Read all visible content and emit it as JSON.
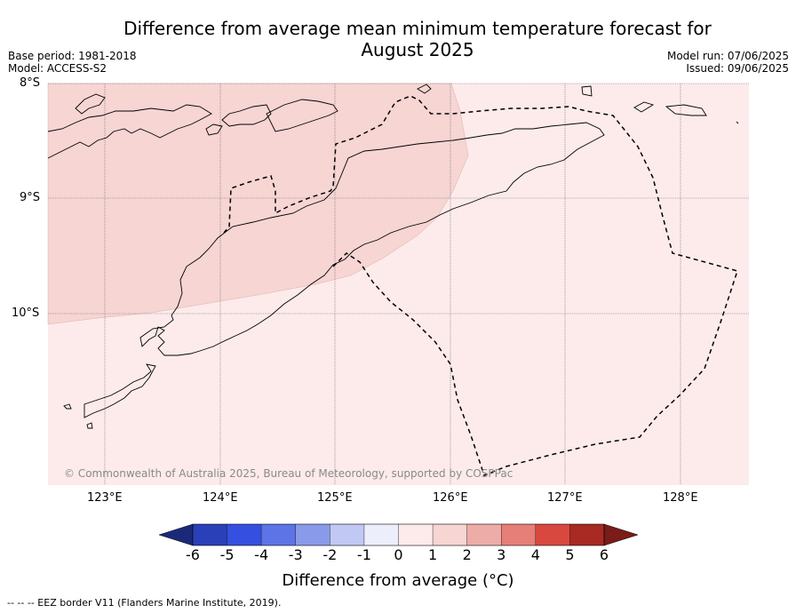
{
  "title_line1": "Difference from average mean minimum temperature forecast for",
  "title_line2": "August 2025",
  "base_period": "Base period: 1981-2018",
  "model": "Model: ACCESS-S2",
  "model_run": "Model run: 07/06/2025",
  "issued": "Issued: 09/06/2025",
  "lat_labels": [
    "8°S",
    "9°S",
    "10°S"
  ],
  "lon_labels": [
    "123°E",
    "124°E",
    "125°E",
    "126°E",
    "127°E",
    "128°E"
  ],
  "copyright": "© Commonwealth of Australia 2025, Bureau of Meteorology, supported by COSPPac",
  "colorbar": {
    "ticks": [
      "-6",
      "-5",
      "-4",
      "-3",
      "-2",
      "-1",
      "0",
      "1",
      "2",
      "3",
      "4",
      "5",
      "6"
    ],
    "colors": [
      "#1b2a78",
      "#2a40b8",
      "#3550e0",
      "#5c74e6",
      "#8a9aea",
      "#c1c8f4",
      "#eceefb",
      "#fcebea",
      "#f6d5d3",
      "#eeaca8",
      "#e67f78",
      "#d9483f",
      "#a82a22",
      "#7a1c18"
    ],
    "label": "Difference from average (°C)"
  },
  "footnote": "--  --  -- EEZ border V11 (Flanders Marine Institute, 2019).",
  "map_fill": {
    "category_1_2": "#f6d5d3",
    "category_0_1": "#fcebea"
  }
}
